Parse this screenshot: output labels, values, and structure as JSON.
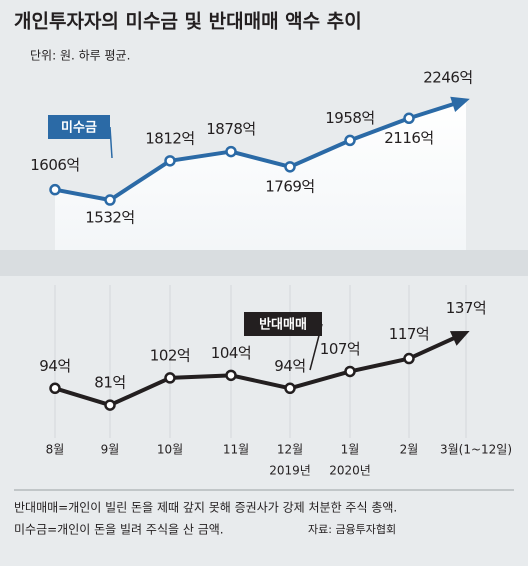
{
  "chart_data": [
    {
      "type": "line",
      "title": "개인투자자의 미수금 및 반대매매 액수 추이",
      "subtitle": "단위: 원. 하루 평균.",
      "series": [
        {
          "name": "미수금",
          "color": "#2b6aa6",
          "values": [
            1606,
            1532,
            1812,
            1878,
            1769,
            1958,
            2116,
            2246
          ],
          "value_labels": [
            "1606억",
            "1532억",
            "1812억",
            "1878억",
            "1769억",
            "1958억",
            "2116억",
            "2246억"
          ]
        }
      ],
      "ylim": [
        1175,
        2425
      ]
    },
    {
      "type": "line",
      "categories": [
        "8월",
        "9월",
        "10월",
        "11월",
        "12월",
        "1월",
        "2월",
        "3월(1~12일)"
      ],
      "year_labels": [
        "2019년",
        "2020년"
      ],
      "series": [
        {
          "name": "반대매매",
          "color": "#231f20",
          "values": [
            94,
            81,
            102,
            104,
            94,
            107,
            117,
            137
          ],
          "value_labels": [
            "94억",
            "81억",
            "102억",
            "104억",
            "94억",
            "107억",
            "117억",
            "137억"
          ]
        }
      ],
      "ylim": [
        54,
        170
      ],
      "notes": [
        "반대매매=개인이 빌린 돈을 제때 갚지 못해 증권사가 강제 처분한 주식 총액.",
        "미수금=개인이 돈을 빌려 주식을 산 금액."
      ],
      "source": "자료: 금융투자협회"
    }
  ]
}
